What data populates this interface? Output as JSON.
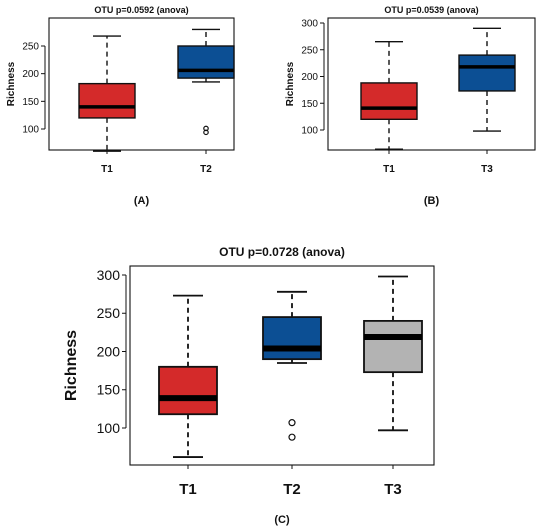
{
  "chart_data": [
    {
      "type": "box",
      "panel_label": "(A)",
      "title": "OTU p=0.0592 (anova)",
      "ylabel": "Richness",
      "yticks": [
        100,
        150,
        200,
        250
      ],
      "categories": [
        "T1",
        "T2"
      ],
      "series": [
        {
          "category": "T1",
          "color": "#d42a2a",
          "min": 60,
          "q1": 120,
          "median": 140,
          "q3": 182,
          "max": 268,
          "outliers": []
        },
        {
          "category": "T2",
          "color": "#0c4f94",
          "min": 185,
          "q1": 192,
          "median": 206,
          "q3": 250,
          "max": 280,
          "outliers": [
            101,
            94
          ]
        }
      ]
    },
    {
      "type": "box",
      "panel_label": "(B)",
      "title": "OTU p=0.0539 (anova)",
      "ylabel": "Richness",
      "yticks": [
        100,
        150,
        200,
        250,
        300
      ],
      "categories": [
        "T1",
        "T3"
      ],
      "series": [
        {
          "category": "T1",
          "color": "#d42a2a",
          "min": 64,
          "q1": 120,
          "median": 141,
          "q3": 188,
          "max": 265,
          "outliers": []
        },
        {
          "category": "T3",
          "color": "#0c4f94",
          "min": 98,
          "q1": 173,
          "median": 218,
          "q3": 240,
          "max": 290,
          "outliers": []
        }
      ]
    },
    {
      "type": "box",
      "panel_label": "(C)",
      "title": "OTU p=0.0728 (anova)",
      "ylabel": "Richness",
      "yticks": [
        100,
        150,
        200,
        250,
        300
      ],
      "categories": [
        "T1",
        "T2",
        "T3"
      ],
      "series": [
        {
          "category": "T1",
          "color": "#d42a2a",
          "min": 62,
          "q1": 118,
          "median": 139,
          "q3": 180,
          "max": 273,
          "outliers": []
        },
        {
          "category": "T2",
          "color": "#0c4f94",
          "min": 185,
          "q1": 190,
          "median": 204,
          "q3": 245,
          "max": 278,
          "outliers": [
            107,
            88
          ]
        },
        {
          "category": "T3",
          "color": "#b3b3b3",
          "min": 97,
          "q1": 173,
          "median": 219,
          "q3": 240,
          "max": 298,
          "outliers": []
        }
      ]
    }
  ]
}
